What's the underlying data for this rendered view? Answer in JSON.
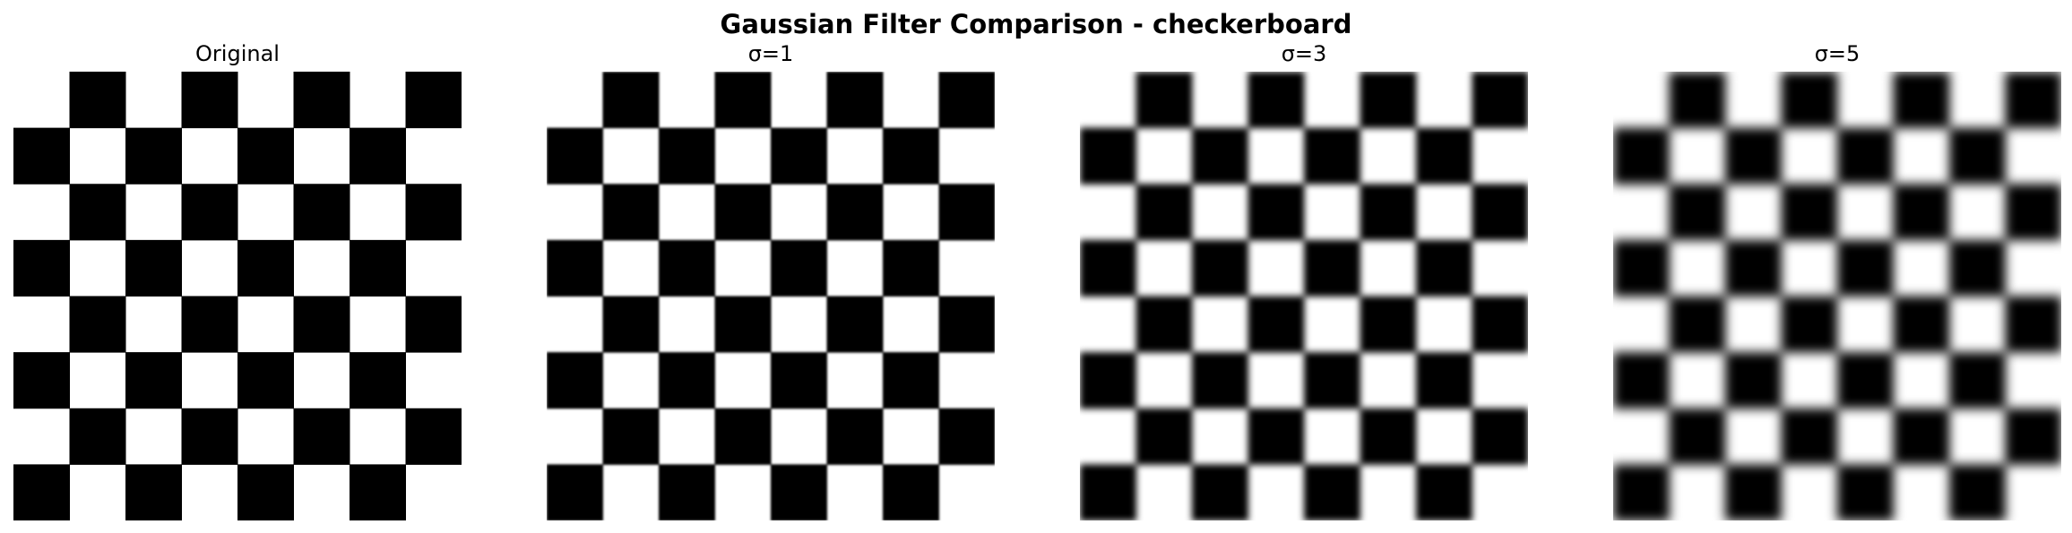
{
  "figure": {
    "title": "Gaussian Filter Comparison - checkerboard"
  },
  "panels": [
    {
      "title": "Original",
      "sigma": 0
    },
    {
      "title": "σ=1",
      "sigma": 1
    },
    {
      "title": "σ=3",
      "sigma": 3
    },
    {
      "title": "σ=5",
      "sigma": 5
    }
  ],
  "image": {
    "pattern": "checkerboard",
    "grid_size": 8,
    "top_left_square": "white",
    "colors": {
      "dark": "#000000",
      "light": "#ffffff"
    }
  }
}
